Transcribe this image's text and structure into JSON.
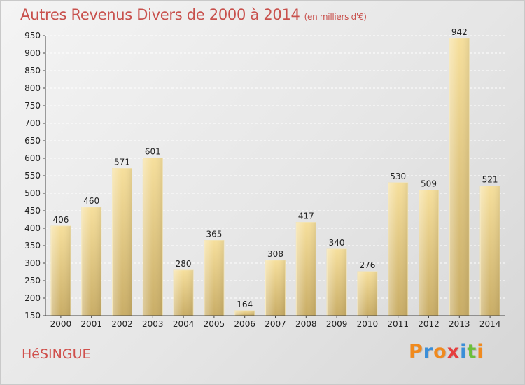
{
  "header": {
    "title": "Autres Revenus Divers de 2000 à 2014",
    "subtitle": "(en milliers d'€)"
  },
  "footer": {
    "city": "HéSINGUE",
    "logo_text": "Proxiti",
    "logo_colors": [
      "#f08a1e",
      "#3a8ed8",
      "#f08a1e",
      "#e63e3e",
      "#3a8ed8",
      "#6bbf3a",
      "#f08a1e"
    ]
  },
  "chart_data": {
    "type": "bar",
    "title": "Autres Revenus Divers de 2000 à 2014",
    "subtitle": "(en milliers d'€)",
    "categories": [
      "2000",
      "2001",
      "2002",
      "2003",
      "2004",
      "2005",
      "2006",
      "2007",
      "2008",
      "2009",
      "2010",
      "2011",
      "2012",
      "2013",
      "2014"
    ],
    "values": [
      406,
      460,
      571,
      601,
      280,
      365,
      164,
      308,
      417,
      340,
      276,
      530,
      509,
      942,
      521
    ],
    "ylim": [
      150,
      950
    ],
    "yticks": [
      150,
      200,
      250,
      300,
      350,
      400,
      450,
      500,
      550,
      600,
      650,
      700,
      750,
      800,
      850,
      900,
      950
    ],
    "grid": true,
    "bar_color": "#e8cf8a"
  }
}
